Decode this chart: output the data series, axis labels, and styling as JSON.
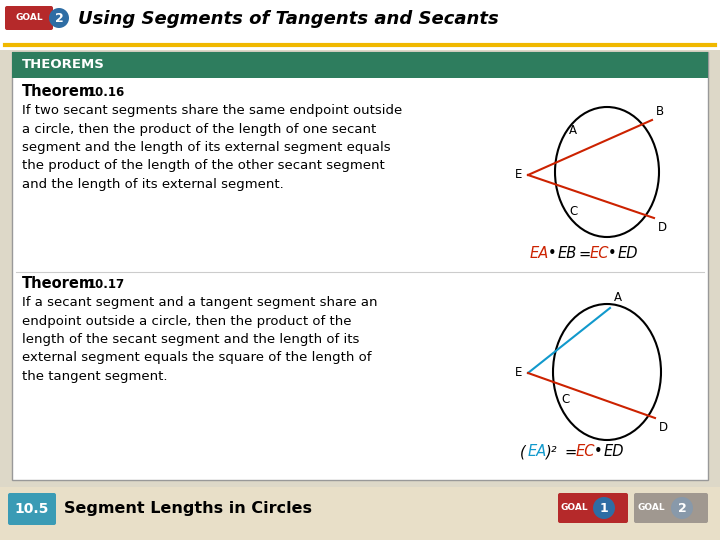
{
  "title": "Using Segments of Tangents and Secants",
  "goal_red": "#b5292a",
  "goal_blue": "#2e6da4",
  "yellow_line": "#f0b800",
  "theorems_bg": "#2e7d5e",
  "theorem1_body": "If two secant segments share the same endpoint outside\na circle, then the product of the length of one secant\nsegment and the length of its external segment equals\nthe product of the length of the other secant segment\nand the length of its external segment.",
  "theorem2_body": "If a secant segment and a tangent segment share an\nendpoint outside a circle, then the product of the\nlength of the secant segment and the length of its\nexternal segment equals the square of the length of\nthe tangent segment.",
  "footer_bg": "#e8dfc8",
  "footer_text": "Segment Lengths in Circles",
  "footer_num_bg": "#3a9bb5",
  "red_formula": "#cc2200",
  "cyan_formula": "#1199cc"
}
